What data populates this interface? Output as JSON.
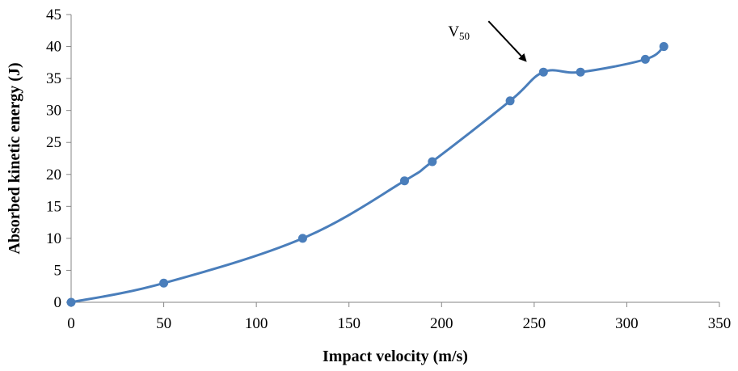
{
  "chart_data": {
    "type": "line",
    "xlabel": "Impact velocity (m/s)",
    "ylabel": "Absorbed kinetic energy (J)",
    "xlim": [
      0,
      350
    ],
    "ylim": [
      0,
      45
    ],
    "xticks": [
      "0",
      "50",
      "100",
      "150",
      "200",
      "250",
      "300",
      "350"
    ],
    "yticks": [
      "0",
      "5",
      "10",
      "15",
      "20",
      "25",
      "30",
      "35",
      "40",
      "45"
    ],
    "grid": false,
    "smooth": true,
    "series": [
      {
        "x": [
          0,
          50,
          125,
          180,
          195,
          237,
          255,
          275,
          310,
          320
        ],
        "y": [
          0,
          3,
          10,
          19,
          22,
          31.5,
          36,
          36,
          38,
          40
        ],
        "color": "#4a7ebb"
      }
    ],
    "annotation": {
      "label_main": "V",
      "label_sub": "50",
      "arrow_color": "#000000"
    }
  }
}
